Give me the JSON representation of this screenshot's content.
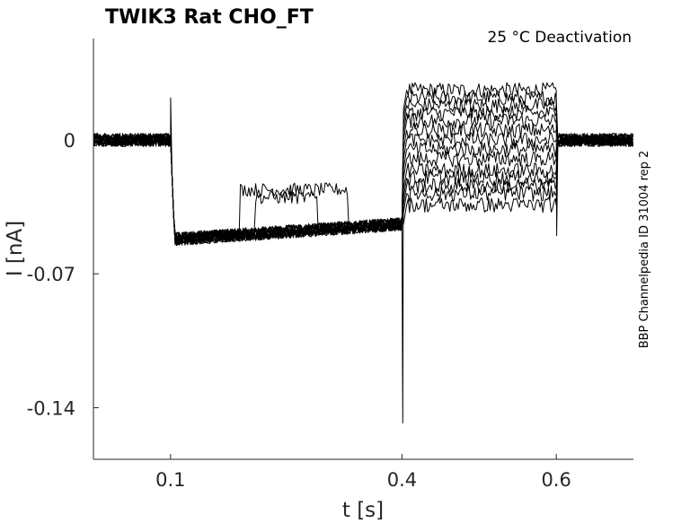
{
  "chart_data": {
    "type": "line",
    "title": "TWIK3  Rat  CHO_FT",
    "annotation": "25 °C  Deactivation",
    "side_label": "BBP Channelpedia ID 31004 rep 2",
    "xlabel": "t [s]",
    "ylabel": "I [nA]",
    "xlim": [
      0,
      0.7
    ],
    "ylim": [
      -0.167,
      0.053
    ],
    "x_ticks": [
      0.1,
      0.4,
      0.6
    ],
    "x_tick_labels": [
      "0.1",
      "0.4",
      "0.6"
    ],
    "y_ticks": [
      0,
      -0.07,
      -0.14
    ],
    "y_tick_labels": [
      "0",
      "-0.07",
      "-0.14"
    ],
    "grid": false,
    "legend": "none",
    "protocol": {
      "prepulse_start": 0.1,
      "test_start": 0.4,
      "test_end": 0.6,
      "baseline": 0.0
    },
    "series": [
      {
        "level": 1,
        "prepulse_early": -0.052,
        "prepulse_late": -0.044,
        "test": 0.026
      },
      {
        "level": 2,
        "prepulse_early": -0.052,
        "prepulse_late": -0.044,
        "test": 0.022
      },
      {
        "level": 3,
        "prepulse_early": -0.052,
        "prepulse_late": -0.044,
        "test": 0.018
      },
      {
        "level": 4,
        "prepulse_early": -0.052,
        "prepulse_late": -0.044,
        "test": 0.014
      },
      {
        "level": 5,
        "prepulse_early": -0.052,
        "prepulse_late": -0.044,
        "test": 0.01
      },
      {
        "level": 6,
        "prepulse_early": -0.052,
        "prepulse_late": -0.044,
        "test": 0.005
      },
      {
        "level": 7,
        "prepulse_early": -0.052,
        "prepulse_late": -0.044,
        "test": 0.0
      },
      {
        "level": 8,
        "prepulse_early": -0.052,
        "prepulse_late": -0.044,
        "test": -0.005
      },
      {
        "level": 9,
        "prepulse_early": -0.052,
        "prepulse_late": -0.044,
        "test": -0.01
      },
      {
        "level": 10,
        "prepulse_early": -0.052,
        "prepulse_late": -0.044,
        "test": -0.016
      },
      {
        "level": 11,
        "prepulse_early": -0.052,
        "prepulse_late": -0.044,
        "test": -0.02
      },
      {
        "level": 12,
        "prepulse_early": -0.052,
        "prepulse_late": -0.044,
        "test": -0.024
      },
      {
        "level": 13,
        "prepulse_early": -0.052,
        "prepulse_late": -0.044,
        "test": -0.028
      },
      {
        "level": 14,
        "prepulse_early": -0.052,
        "prepulse_late": -0.044,
        "test": -0.034
      }
    ],
    "artifacts": {
      "onset_spike": 0.022,
      "test_onset_dip": -0.148,
      "offset_dip": -0.05
    }
  }
}
